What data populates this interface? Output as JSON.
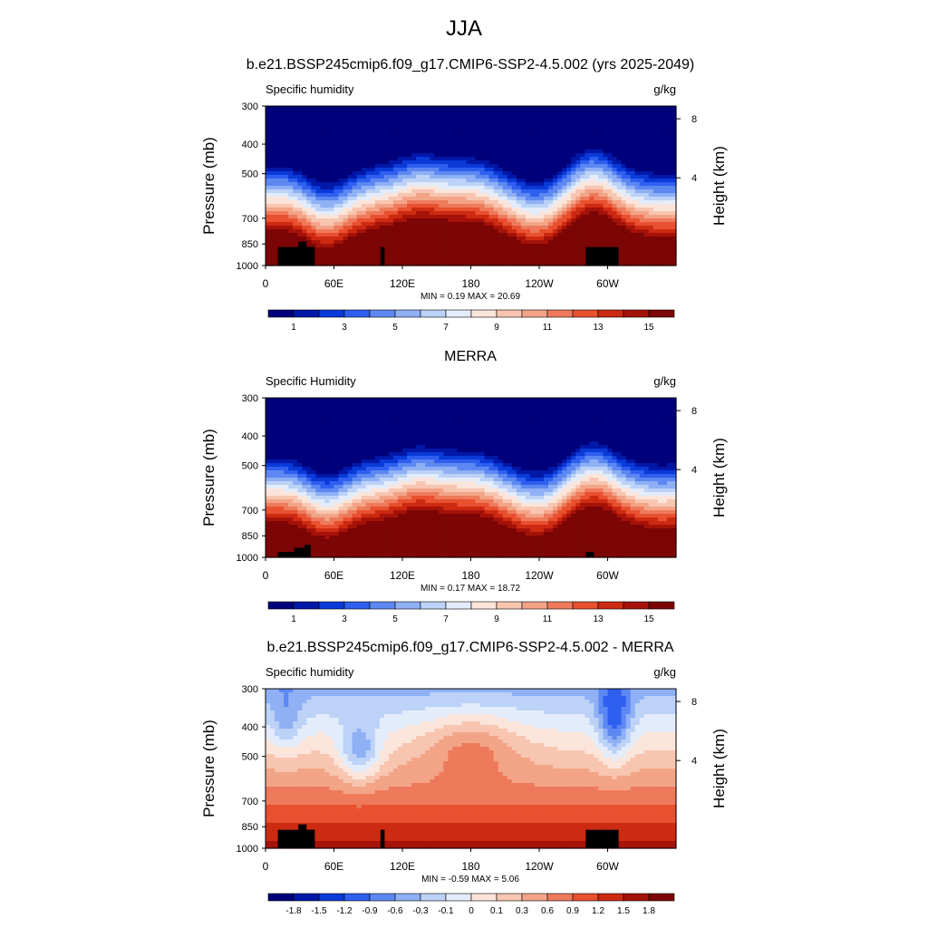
{
  "page": {
    "title": "JJA"
  },
  "shared": {
    "x_ticks": [
      "0",
      "60E",
      "120E",
      "180",
      "120W",
      "60W"
    ],
    "y_ticks": [
      "300",
      "400",
      "500",
      "700",
      "850",
      "1000"
    ],
    "y2_ticks": [
      "8",
      "4"
    ],
    "ylabel": "Pressure (mb)",
    "y2label": "Height (km)",
    "colors_abs": [
      "#00007a",
      "#0018a8",
      "#0a3ad8",
      "#2e5fef",
      "#5d88f2",
      "#8fb0f5",
      "#bcd2f7",
      "#e3ecfa",
      "#fbe5da",
      "#f7c5b0",
      "#f3a487",
      "#ee7a5c",
      "#e8502f",
      "#cd2a12",
      "#a51209",
      "#7c0505"
    ],
    "colors_diff": [
      "#00007a",
      "#0018a8",
      "#0a3ad8",
      "#2e5fef",
      "#5d88f2",
      "#8fb0f5",
      "#bcd2f7",
      "#e3ecfa",
      "#fbe5da",
      "#f7c5b0",
      "#f3a487",
      "#ee7a5c",
      "#e8502f",
      "#cd2a12",
      "#a51209",
      "#7c0505"
    ]
  },
  "chart_data": [
    {
      "type": "heatmap",
      "title": "b.e21.BSSP245cmip6.f09_g17.CMIP6-SSP2-4.5.002 (yrs 2025-2049)",
      "left_label": "Specific humidity",
      "right_label": "g/kg",
      "stats": "MIN =   0.19  MAX =  20.69",
      "min": 0.19,
      "max": 20.69,
      "xlim": [
        0,
        360
      ],
      "ylim_mb": [
        1000,
        300
      ],
      "colorbar_labels": [
        "1",
        "3",
        "5",
        "7",
        "9",
        "11",
        "13",
        "15"
      ]
    },
    {
      "type": "heatmap",
      "title": "MERRA",
      "left_label": "Specific Humidity",
      "right_label": "g/kg",
      "stats": "MIN =   0.17  MAX =  18.72",
      "min": 0.17,
      "max": 18.72,
      "xlim": [
        0,
        360
      ],
      "ylim_mb": [
        1000,
        300
      ],
      "colorbar_labels": [
        "1",
        "3",
        "5",
        "7",
        "9",
        "11",
        "13",
        "15"
      ]
    },
    {
      "type": "heatmap",
      "title": "b.e21.BSSP245cmip6.f09_g17.CMIP6-SSP2-4.5.002 - MERRA",
      "left_label": "Specific humidity",
      "right_label": "g/kg",
      "stats": "MIN =  -0.59  MAX =   5.06",
      "min": -0.59,
      "max": 5.06,
      "xlim": [
        0,
        360
      ],
      "ylim_mb": [
        1000,
        300
      ],
      "colorbar_labels": [
        "-1.8",
        "-1.5",
        "-1.2",
        "-0.9",
        "-0.6",
        "-0.3",
        "-0.1",
        "0",
        "0.1",
        "0.3",
        "0.6",
        "0.9",
        "1.2",
        "1.5",
        "1.8"
      ]
    }
  ]
}
